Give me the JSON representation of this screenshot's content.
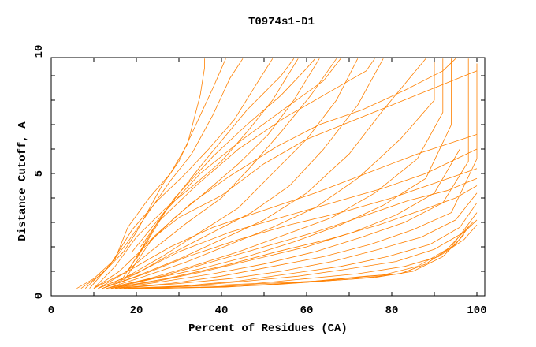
{
  "chart_data": {
    "type": "line",
    "title": "T0974s1-D1",
    "xlabel": "Percent of Residues (CA)",
    "ylabel": "Distance Cutoff, A",
    "xlim": [
      0,
      100
    ],
    "ylim": [
      0,
      10
    ],
    "xticks": [
      "0",
      "20",
      "40",
      "60",
      "80",
      "100"
    ],
    "yticks": [
      "0",
      "5",
      "10"
    ],
    "grid": false,
    "line_color": "#ff8000",
    "series": [
      {
        "points": [
          [
            6,
            0.3
          ],
          [
            10,
            0.7
          ],
          [
            15,
            1.5
          ],
          [
            18,
            2.8
          ],
          [
            23,
            4
          ],
          [
            28,
            5
          ],
          [
            32,
            6.2
          ],
          [
            35,
            8.2
          ],
          [
            36,
            9.3
          ],
          [
            36,
            9.7
          ]
        ]
      },
      {
        "points": [
          [
            7,
            0.3
          ],
          [
            12,
            0.9
          ],
          [
            17,
            1.8
          ],
          [
            20,
            2.6
          ],
          [
            26,
            4.5
          ],
          [
            30,
            5.5
          ],
          [
            34,
            7
          ],
          [
            38,
            8.5
          ],
          [
            41,
            9.7
          ]
        ]
      },
      {
        "points": [
          [
            8,
            0.3
          ],
          [
            13,
            1.1
          ],
          [
            18,
            2.2
          ],
          [
            22,
            3.2
          ],
          [
            28,
            4.7
          ],
          [
            33,
            5.8
          ],
          [
            38,
            7.4
          ],
          [
            42,
            8.9
          ],
          [
            45,
            9.7
          ]
        ]
      },
      {
        "points": [
          [
            9,
            0.3
          ],
          [
            14,
            1.3
          ],
          [
            19,
            2.7
          ],
          [
            25,
            3.9
          ],
          [
            31,
            4.9
          ],
          [
            37,
            6
          ],
          [
            43,
            7.2
          ],
          [
            48,
            8.6
          ],
          [
            52,
            9.7
          ]
        ]
      },
      {
        "points": [
          [
            10,
            0.3
          ],
          [
            15,
            1.2
          ],
          [
            20,
            2.4
          ],
          [
            27,
            3.6
          ],
          [
            34,
            4.6
          ],
          [
            40,
            5.5
          ],
          [
            46,
            6.7
          ],
          [
            52,
            8
          ],
          [
            58,
            9.7
          ]
        ]
      },
      {
        "points": [
          [
            10,
            0.3
          ],
          [
            16,
            1
          ],
          [
            22,
            2
          ],
          [
            29,
            3.2
          ],
          [
            36,
            4.2
          ],
          [
            44,
            5.4
          ],
          [
            51,
            6.6
          ],
          [
            57,
            8
          ],
          [
            63,
            9.7
          ]
        ]
      },
      {
        "points": [
          [
            11,
            0.3
          ],
          [
            17,
            0.9
          ],
          [
            24,
            1.9
          ],
          [
            32,
            3
          ],
          [
            40,
            4
          ],
          [
            47,
            5.3
          ],
          [
            54,
            6.7
          ],
          [
            61,
            8.2
          ],
          [
            67,
            9.7
          ]
        ]
      },
      {
        "points": [
          [
            11,
            0.3
          ],
          [
            18,
            0.8
          ],
          [
            26,
            1.6
          ],
          [
            35,
            2.6
          ],
          [
            44,
            3.6
          ],
          [
            52,
            5
          ],
          [
            60,
            6.4
          ],
          [
            67,
            8
          ],
          [
            72,
            9.7
          ]
        ]
      },
      {
        "points": [
          [
            12,
            0.3
          ],
          [
            20,
            0.9
          ],
          [
            28,
            1.7
          ],
          [
            38,
            2.6
          ],
          [
            47,
            3.4
          ],
          [
            56,
            4.5
          ],
          [
            64,
            6
          ],
          [
            72,
            7.8
          ],
          [
            78,
            9.7
          ]
        ]
      },
      {
        "points": [
          [
            12,
            0.3
          ],
          [
            20,
            0.8
          ],
          [
            30,
            1.5
          ],
          [
            40,
            2.3
          ],
          [
            50,
            3.1
          ],
          [
            60,
            4.2
          ],
          [
            70,
            5.8
          ],
          [
            78,
            7.6
          ],
          [
            88,
            9.7
          ]
        ]
      },
      {
        "points": [
          [
            13,
            0.3
          ],
          [
            22,
            0.8
          ],
          [
            32,
            1.4
          ],
          [
            42,
            2.1
          ],
          [
            52,
            2.8
          ],
          [
            62,
            3.6
          ],
          [
            72,
            4.8
          ],
          [
            82,
            6.4
          ],
          [
            90,
            8
          ],
          [
            90,
            9.7
          ]
        ]
      },
      {
        "points": [
          [
            13,
            0.3
          ],
          [
            23,
            0.7
          ],
          [
            33,
            1.2
          ],
          [
            44,
            1.8
          ],
          [
            55,
            2.5
          ],
          [
            66,
            3.2
          ],
          [
            76,
            4.2
          ],
          [
            86,
            5.6
          ],
          [
            92,
            7.5
          ],
          [
            92,
            9.7
          ]
        ]
      },
      {
        "points": [
          [
            14,
            0.3
          ],
          [
            24,
            0.7
          ],
          [
            35,
            1.1
          ],
          [
            46,
            1.6
          ],
          [
            57,
            2.2
          ],
          [
            68,
            2.9
          ],
          [
            78,
            3.7
          ],
          [
            88,
            4.8
          ],
          [
            94,
            7
          ],
          [
            94,
            9.7
          ]
        ]
      },
      {
        "points": [
          [
            14,
            0.3
          ],
          [
            25,
            0.6
          ],
          [
            36,
            1
          ],
          [
            48,
            1.5
          ],
          [
            60,
            2
          ],
          [
            71,
            2.6
          ],
          [
            81,
            3.3
          ],
          [
            90,
            4.2
          ],
          [
            96,
            6
          ],
          [
            96,
            9.7
          ]
        ]
      },
      {
        "points": [
          [
            15,
            0.3
          ],
          [
            27,
            0.6
          ],
          [
            38,
            0.9
          ],
          [
            50,
            1.3
          ],
          [
            62,
            1.8
          ],
          [
            73,
            2.4
          ],
          [
            83,
            3
          ],
          [
            92,
            3.8
          ],
          [
            98,
            5.5
          ],
          [
            98,
            9.7
          ]
        ]
      },
      {
        "points": [
          [
            15,
            0.3
          ],
          [
            28,
            0.5
          ],
          [
            40,
            0.8
          ],
          [
            52,
            1.2
          ],
          [
            64,
            1.6
          ],
          [
            75,
            2.1
          ],
          [
            85,
            2.7
          ],
          [
            94,
            3.4
          ],
          [
            100,
            5.6
          ],
          [
            100,
            9.5
          ]
        ]
      },
      {
        "points": [
          [
            16,
            0.3
          ],
          [
            30,
            0.5
          ],
          [
            42,
            0.7
          ],
          [
            54,
            1
          ],
          [
            66,
            1.4
          ],
          [
            77,
            1.9
          ],
          [
            87,
            2.4
          ],
          [
            95,
            3.1
          ],
          [
            100,
            4.2
          ]
        ]
      },
      {
        "points": [
          [
            17,
            0.3
          ],
          [
            31,
            0.4
          ],
          [
            44,
            0.6
          ],
          [
            56,
            0.9
          ],
          [
            68,
            1.2
          ],
          [
            79,
            1.6
          ],
          [
            89,
            2.1
          ],
          [
            96,
            2.8
          ],
          [
            100,
            3.8
          ]
        ]
      },
      {
        "points": [
          [
            18,
            0.3
          ],
          [
            33,
            0.4
          ],
          [
            46,
            0.6
          ],
          [
            58,
            0.8
          ],
          [
            70,
            1.1
          ],
          [
            81,
            1.4
          ],
          [
            90,
            1.9
          ],
          [
            97,
            2.6
          ],
          [
            100,
            3.1
          ]
        ]
      },
      {
        "points": [
          [
            19,
            0.3
          ],
          [
            35,
            0.4
          ],
          [
            48,
            0.5
          ],
          [
            60,
            0.7
          ],
          [
            72,
            0.9
          ],
          [
            83,
            1.2
          ],
          [
            91,
            1.6
          ],
          [
            97,
            2.3
          ],
          [
            100,
            2.9
          ]
        ]
      },
      {
        "points": [
          [
            20,
            0.3
          ],
          [
            37,
            0.35
          ],
          [
            50,
            0.5
          ],
          [
            62,
            0.6
          ],
          [
            74,
            0.8
          ],
          [
            82,
            0.9
          ],
          [
            88,
            1.3
          ],
          [
            95,
            2.1
          ],
          [
            98,
            2.8
          ]
        ]
      },
      {
        "points": [
          [
            22,
            0.3
          ],
          [
            39,
            0.35
          ],
          [
            52,
            0.45
          ],
          [
            64,
            0.6
          ],
          [
            76,
            0.75
          ],
          [
            85,
            1
          ],
          [
            92,
            1.6
          ],
          [
            97,
            2.5
          ]
        ]
      },
      {
        "points": [
          [
            24,
            0.3
          ],
          [
            41,
            0.35
          ],
          [
            54,
            0.5
          ],
          [
            66,
            0.65
          ],
          [
            78,
            0.85
          ],
          [
            86,
            1.2
          ],
          [
            93,
            1.9
          ],
          [
            99,
            3
          ]
        ]
      },
      {
        "points": [
          [
            12,
            0.3
          ],
          [
            22,
            0.9
          ],
          [
            32,
            1.6
          ],
          [
            44,
            2.3
          ],
          [
            56,
            2.9
          ],
          [
            68,
            3.4
          ],
          [
            80,
            4
          ],
          [
            90,
            4.6
          ],
          [
            100,
            5.2
          ]
        ]
      },
      {
        "points": [
          [
            11,
            0.3
          ],
          [
            21,
            1
          ],
          [
            30,
            1.8
          ],
          [
            42,
            2.6
          ],
          [
            54,
            3.2
          ],
          [
            66,
            3.8
          ],
          [
            78,
            4.4
          ],
          [
            88,
            5
          ],
          [
            100,
            6
          ]
        ]
      },
      {
        "points": [
          [
            10,
            0.3
          ],
          [
            19,
            1.1
          ],
          [
            28,
            2
          ],
          [
            38,
            2.8
          ],
          [
            50,
            3.5
          ],
          [
            62,
            4.2
          ],
          [
            74,
            5
          ],
          [
            86,
            5.8
          ],
          [
            100,
            6.6
          ]
        ]
      },
      {
        "points": [
          [
            16,
            0.5
          ],
          [
            22,
            2.1
          ],
          [
            30,
            3.2
          ],
          [
            40,
            4.1
          ],
          [
            50,
            5.4
          ],
          [
            60,
            6.4
          ],
          [
            70,
            7.1
          ],
          [
            80,
            7.8
          ],
          [
            90,
            8.5
          ],
          [
            100,
            9.2
          ]
        ]
      },
      {
        "points": [
          [
            17,
            0.6
          ],
          [
            24,
            2.4
          ],
          [
            33,
            3.8
          ],
          [
            42,
            4.9
          ],
          [
            53,
            6.1
          ],
          [
            63,
            7
          ],
          [
            73,
            7.6
          ],
          [
            83,
            8.4
          ],
          [
            92,
            9.2
          ],
          [
            95,
            9.7
          ]
        ]
      },
      {
        "points": [
          [
            18,
            1
          ],
          [
            25,
            3
          ],
          [
            34,
            4.5
          ],
          [
            44,
            6
          ],
          [
            55,
            7.3
          ],
          [
            65,
            8.3
          ],
          [
            74,
            9.2
          ],
          [
            76,
            9.7
          ]
        ]
      },
      {
        "points": [
          [
            20,
            1.5
          ],
          [
            27,
            3.5
          ],
          [
            35,
            5
          ],
          [
            45,
            6.4
          ],
          [
            56,
            7.8
          ],
          [
            64,
            8.8
          ],
          [
            68,
            9.7
          ]
        ]
      },
      {
        "points": [
          [
            21,
            2
          ],
          [
            29,
            4
          ],
          [
            38,
            5.7
          ],
          [
            46,
            7
          ],
          [
            54,
            8.2
          ],
          [
            60,
            9.3
          ],
          [
            62,
            9.7
          ]
        ]
      },
      {
        "points": [
          [
            19,
            1.8
          ],
          [
            26,
            3.3
          ],
          [
            36,
            5.5
          ],
          [
            46,
            7.6
          ],
          [
            54,
            9
          ],
          [
            57,
            9.7
          ]
        ]
      },
      {
        "points": [
          [
            25,
            0.3
          ],
          [
            45,
            0.4
          ],
          [
            60,
            0.55
          ],
          [
            72,
            0.7
          ],
          [
            82,
            0.9
          ],
          [
            88,
            1.3
          ],
          [
            94,
            2
          ],
          [
            100,
            3.4
          ]
        ]
      },
      {
        "points": [
          [
            13,
            0.3
          ],
          [
            26,
            0.8
          ],
          [
            38,
            1.4
          ],
          [
            50,
            2
          ],
          [
            62,
            2.6
          ],
          [
            74,
            3.3
          ],
          [
            84,
            3.9
          ],
          [
            93,
            4.3
          ],
          [
            100,
            4.8
          ]
        ]
      },
      {
        "points": [
          [
            14,
            0.3
          ],
          [
            27,
            0.7
          ],
          [
            40,
            1.2
          ],
          [
            53,
            1.8
          ],
          [
            65,
            2.3
          ],
          [
            77,
            2.9
          ],
          [
            87,
            3.5
          ],
          [
            95,
            4
          ],
          [
            100,
            4.5
          ]
        ]
      }
    ]
  }
}
